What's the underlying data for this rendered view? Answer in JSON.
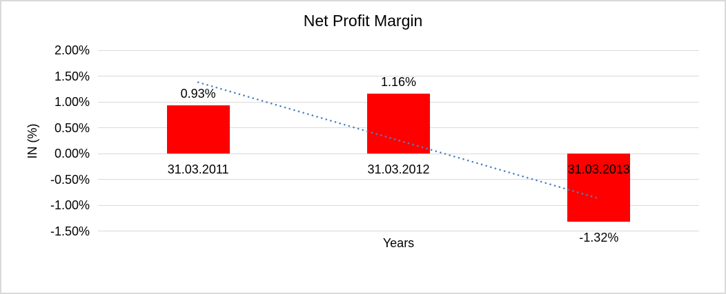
{
  "chart_data": {
    "type": "bar",
    "title": "Net Profit Margin",
    "xlabel": "Years",
    "ylabel": "IN (%)",
    "categories": [
      "31.03.2011",
      "31.03.2012",
      "31.03.2013"
    ],
    "values": [
      0.93,
      1.16,
      -1.32
    ],
    "data_labels": [
      "0.93%",
      "1.16%",
      "-1.32%"
    ],
    "series_name": "Net Profit Margin",
    "y_ticks": [
      {
        "label": "2.00%",
        "value": 2.0
      },
      {
        "label": "1.50%",
        "value": 1.5
      },
      {
        "label": "1.00%",
        "value": 1.0
      },
      {
        "label": "0.50%",
        "value": 0.5
      },
      {
        "label": "0.00%",
        "value": 0.0
      },
      {
        "label": "-0.50%",
        "value": -0.5
      },
      {
        "label": "-1.00%",
        "value": -1.0
      },
      {
        "label": "-1.50%",
        "value": -1.5
      }
    ],
    "ylim": [
      -1.5,
      2.0
    ],
    "grid": true,
    "legend": "none",
    "bar_color": "#FF0000",
    "gridline_color": "#D9D9D9",
    "text_color": "#000000",
    "border_color": "#D9D9D9",
    "background_color": "#FFFFFF",
    "trendline": {
      "type": "linear",
      "style": "dotted",
      "color": "#4E82C6",
      "start_value": 1.38,
      "end_value": -0.87
    }
  }
}
